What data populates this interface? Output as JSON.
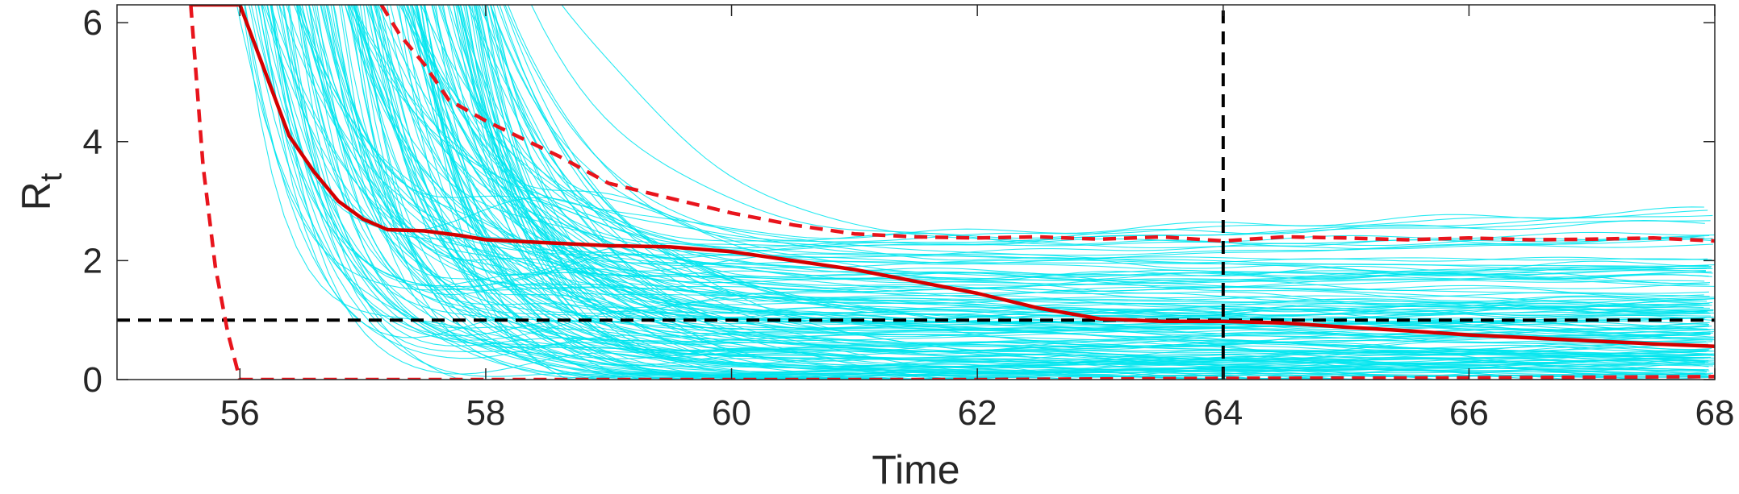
{
  "chart_data": {
    "type": "line",
    "title": "",
    "xlabel": "Time",
    "ylabel_main": "R",
    "ylabel_sub": "t",
    "xlim": [
      55,
      68
    ],
    "ylim": [
      0,
      6.3
    ],
    "xticks": [
      56,
      58,
      60,
      62,
      64,
      66,
      68
    ],
    "yticks": [
      0,
      2,
      4,
      6
    ],
    "xtick_labels": [
      "56",
      "58",
      "60",
      "62",
      "64",
      "66",
      "68"
    ],
    "ytick_labels": [
      "0",
      "2",
      "4",
      "6"
    ],
    "grid": false,
    "colors": {
      "ensemble": "#00e5ee",
      "median": "#d40000",
      "bounds": "#e8141c",
      "reference": "#000000",
      "axes": "#262626"
    },
    "ensemble": {
      "description_visible": "hundreds of cyan sample trajectories",
      "count": 170
    },
    "series": [
      {
        "role": "median",
        "style": "solid",
        "x": [
          55.6,
          55.8,
          56.0,
          56.2,
          56.4,
          56.6,
          56.8,
          57.0,
          57.2,
          57.5,
          57.8,
          58.0,
          58.5,
          59.0,
          59.5,
          60.0,
          60.5,
          61.0,
          61.5,
          62.0,
          62.5,
          63.0,
          63.5,
          64.0,
          64.5,
          65.0,
          65.5,
          66.0,
          66.5,
          67.0,
          67.5,
          68.0
        ],
        "y": [
          6.3,
          6.3,
          6.3,
          5.2,
          4.1,
          3.5,
          3.0,
          2.7,
          2.52,
          2.5,
          2.42,
          2.35,
          2.3,
          2.25,
          2.23,
          2.15,
          2.0,
          1.85,
          1.65,
          1.45,
          1.2,
          1.02,
          0.98,
          0.98,
          0.95,
          0.88,
          0.82,
          0.75,
          0.7,
          0.65,
          0.6,
          0.56
        ]
      },
      {
        "role": "upper-bound",
        "style": "dashed",
        "x": [
          57.15,
          57.3,
          57.5,
          57.7,
          58.0,
          58.3,
          58.6,
          59.0,
          59.5,
          60.0,
          60.5,
          61.0,
          61.5,
          62.0,
          62.5,
          63.0,
          63.5,
          64.0,
          64.5,
          65.0,
          65.5,
          66.0,
          66.5,
          67.0,
          67.5,
          68.0
        ],
        "y": [
          6.3,
          5.8,
          5.3,
          4.7,
          4.35,
          4.05,
          3.75,
          3.3,
          3.05,
          2.8,
          2.6,
          2.45,
          2.4,
          2.38,
          2.4,
          2.36,
          2.4,
          2.33,
          2.4,
          2.38,
          2.35,
          2.38,
          2.35,
          2.36,
          2.38,
          2.33
        ]
      },
      {
        "role": "lower-bound-left",
        "style": "dashed",
        "x": [
          55.6,
          55.7,
          55.8,
          55.9,
          56.0
        ],
        "y": [
          6.3,
          3.6,
          1.9,
          0.8,
          0.0
        ]
      },
      {
        "role": "lower-bound",
        "style": "dashed",
        "x": [
          56.0,
          58.0,
          60.0,
          62.0,
          64.0,
          66.0,
          68.0
        ],
        "y": [
          0.0,
          0.0,
          0.0,
          0.0,
          0.02,
          0.03,
          0.05
        ]
      },
      {
        "role": "reference-horizontal",
        "style": "dashed",
        "x": [
          55,
          68
        ],
        "y": [
          1,
          1
        ]
      },
      {
        "role": "reference-vertical",
        "style": "dashed",
        "x": [
          64,
          64
        ],
        "y": [
          0,
          6.3
        ]
      }
    ]
  }
}
